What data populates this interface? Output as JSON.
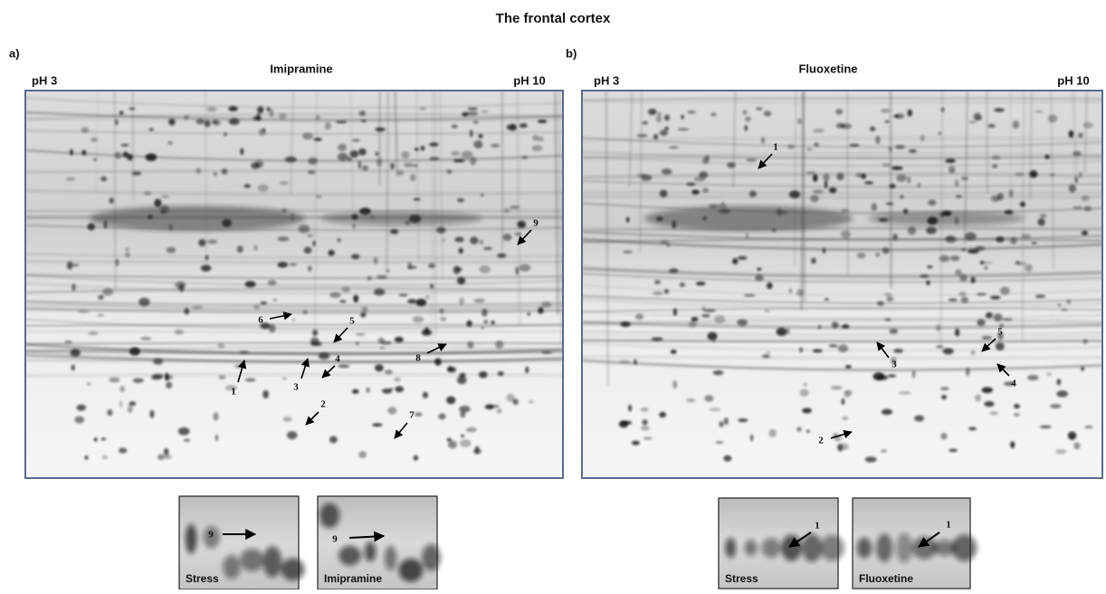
{
  "title": "The frontal cortex",
  "panels": [
    {
      "letter": "a)",
      "drug": "Imipramine",
      "ph_left": "pH 3",
      "ph_right": "pH 10",
      "spot_labels": [
        "1",
        "2",
        "3",
        "4",
        "5",
        "6",
        "7",
        "8",
        "9"
      ],
      "insets": [
        {
          "caption": "Stress",
          "spot_label": "9"
        },
        {
          "caption": "Imipramine",
          "spot_label": "9"
        }
      ]
    },
    {
      "letter": "b)",
      "drug": "Fluoxetine",
      "ph_left": "pH 3",
      "ph_right": "pH 10",
      "spot_labels": [
        "1",
        "2",
        "3",
        "4",
        "5"
      ],
      "insets": [
        {
          "caption": "Stress",
          "spot_label": "1"
        },
        {
          "caption": "Fluoxetine",
          "spot_label": "1"
        }
      ]
    }
  ]
}
